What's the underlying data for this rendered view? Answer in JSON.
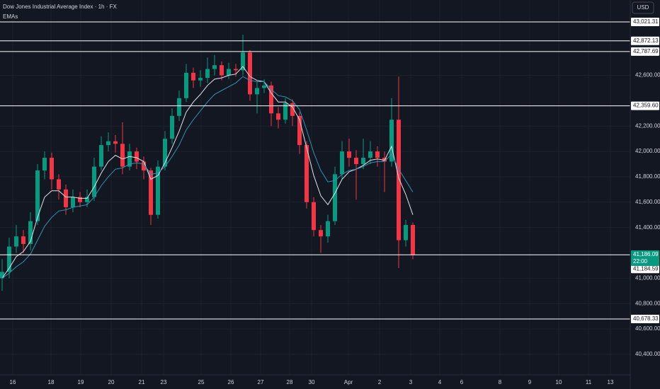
{
  "chart_data": {
    "type": "candlestick",
    "title": "Dow Jones Industrial Average Index · 1h · FX",
    "indicator": "EMAs",
    "currency": "USD",
    "up_color": "#089981",
    "down_color": "#f23645",
    "grid": true,
    "x": [
      0,
      1,
      2,
      3,
      4,
      5,
      6,
      7,
      8,
      9,
      10,
      11,
      12,
      13,
      14,
      15,
      16,
      17,
      18,
      19,
      20,
      21,
      22,
      23,
      24,
      25,
      26,
      27,
      28,
      29,
      30,
      31,
      32,
      33,
      34,
      35,
      36,
      37,
      38,
      39,
      40,
      41,
      42,
      43,
      44,
      45,
      46,
      47,
      48,
      49,
      50,
      51,
      52,
      53,
      54,
      55,
      56,
      57,
      58
    ],
    "open": [
      41000,
      41050,
      41250,
      41330,
      41270,
      41450,
      41850,
      41950,
      41780,
      41700,
      41560,
      41640,
      41600,
      41640,
      41880,
      42050,
      42080,
      42060,
      41880,
      42000,
      41920,
      41850,
      41500,
      41880,
      42100,
      42280,
      42420,
      42620,
      42560,
      42580,
      42650,
      42680,
      42600,
      42650,
      42640,
      42780,
      42450,
      42500,
      42520,
      42300,
      42250,
      42380,
      42280,
      42050,
      41600,
      41380,
      41330,
      41450,
      41820,
      42000,
      41950,
      41900,
      41950,
      42000,
      41950,
      41920,
      42250,
      41300,
      41420
    ],
    "high": [
      41150,
      41320,
      41420,
      41380,
      41520,
      41900,
      42000,
      41990,
      41820,
      41740,
      41700,
      41680,
      41700,
      41950,
      42120,
      42150,
      42130,
      42230,
      42060,
      42030,
      41960,
      41870,
      41930,
      42160,
      42340,
      42480,
      42690,
      42660,
      42640,
      42740,
      42760,
      42710,
      42700,
      42690,
      42920,
      42800,
      42550,
      42570,
      42550,
      42350,
      42420,
      42410,
      42310,
      42080,
      41640,
      41420,
      41500,
      41880,
      42080,
      42100,
      42010,
      42100,
      42080,
      42040,
      42000,
      42420,
      42590,
      41460,
      41440
    ],
    "low": [
      40900,
      41000,
      41200,
      41200,
      41220,
      41420,
      41780,
      41700,
      41620,
      41500,
      41520,
      41560,
      41560,
      41610,
      41850,
      42000,
      41990,
      41820,
      41850,
      41860,
      41780,
      41420,
      41470,
      41850,
      42060,
      42240,
      42390,
      42500,
      42510,
      42540,
      42600,
      42560,
      42570,
      42590,
      42600,
      42400,
      42300,
      42460,
      42200,
      42180,
      42220,
      42200,
      41980,
      41550,
      41330,
      41200,
      41280,
      41420,
      41780,
      41880,
      41620,
      41860,
      41900,
      41880,
      41680,
      41880,
      41080,
      41250,
      41150
    ],
    "close": [
      41050,
      41250,
      41330,
      41270,
      41450,
      41850,
      41950,
      41780,
      41700,
      41560,
      41640,
      41600,
      41640,
      41880,
      42050,
      42080,
      42060,
      41880,
      42000,
      41920,
      41850,
      41500,
      41880,
      42100,
      42280,
      42420,
      42620,
      42560,
      42580,
      42650,
      42680,
      42600,
      42650,
      42640,
      42780,
      42450,
      42500,
      42520,
      42300,
      42250,
      42380,
      42280,
      42050,
      41600,
      41380,
      41330,
      41450,
      41820,
      42000,
      41950,
      41900,
      41950,
      42000,
      41950,
      41920,
      42250,
      41300,
      41420,
      41186
    ],
    "ema_lines": [
      {
        "color": "#e0e3eb",
        "values": [
          41000,
          41080,
          41170,
          41210,
          41290,
          41480,
          41640,
          41690,
          41690,
          41640,
          41640,
          41630,
          41630,
          41720,
          41830,
          41920,
          41970,
          41940,
          41960,
          41950,
          41920,
          41780,
          41810,
          41910,
          42030,
          42160,
          42310,
          42390,
          42450,
          42520,
          42570,
          42580,
          42600,
          42610,
          42670,
          42590,
          42560,
          42550,
          42460,
          42390,
          42390,
          42350,
          42250,
          42030,
          41810,
          41650,
          41580,
          41670,
          41780,
          41840,
          41860,
          41890,
          41930,
          41940,
          41930,
          42040,
          41790,
          41660,
          41500
        ]
      },
      {
        "color": "#2f93b3",
        "values": [
          41000,
          41040,
          41090,
          41130,
          41190,
          41300,
          41410,
          41480,
          41530,
          41540,
          41560,
          41570,
          41580,
          41640,
          41730,
          41800,
          41860,
          41870,
          41900,
          41910,
          41900,
          41820,
          41830,
          41880,
          41960,
          42050,
          42170,
          42250,
          42320,
          42390,
          42450,
          42480,
          42510,
          42540,
          42590,
          42560,
          42550,
          42550,
          42490,
          42440,
          42430,
          42400,
          42330,
          42170,
          41990,
          41850,
          41760,
          41770,
          41820,
          41850,
          41860,
          41880,
          41910,
          41920,
          41920,
          41980,
          41860,
          41770,
          41680
        ]
      }
    ],
    "levels": [
      {
        "value": 43021.31,
        "label": "43,021.31"
      },
      {
        "value": 42872.13,
        "label": "42,872.13"
      },
      {
        "value": 42787.69,
        "label": "42,787.69"
      },
      {
        "value": 42359.6,
        "label": "42,359.60"
      },
      {
        "value": 41184.59,
        "label": "41,184.59"
      },
      {
        "value": 40678.33,
        "label": "40,678.33"
      }
    ],
    "last_price": {
      "value": 41186.09,
      "label": "41,186.09",
      "countdown": "22:00"
    },
    "xlim": [
      -0.3,
      88.7
    ],
    "ylim": [
      40238,
      43194
    ],
    "yticks": [
      {
        "value": 42600,
        "label": "42,600.00"
      },
      {
        "value": 42200,
        "label": "42,200.00"
      },
      {
        "value": 42000,
        "label": "42,000.00"
      },
      {
        "value": 41800,
        "label": "41,800.00"
      },
      {
        "value": 41600,
        "label": "41,600.00"
      },
      {
        "value": 41400,
        "label": "41,400.00"
      },
      {
        "value": 41000,
        "label": "41,000.00"
      },
      {
        "value": 40800,
        "label": "40,800.00"
      },
      {
        "value": 40600,
        "label": "40,600.00"
      },
      {
        "value": 40400,
        "label": "40,400.00"
      }
    ],
    "xticks": [
      {
        "value": 1.5,
        "label": "16"
      },
      {
        "value": 6.9,
        "label": "18"
      },
      {
        "value": 11.1,
        "label": "19"
      },
      {
        "value": 15.4,
        "label": "20"
      },
      {
        "value": 19.7,
        "label": "21"
      },
      {
        "value": 22.8,
        "label": "23"
      },
      {
        "value": 28.1,
        "label": "25"
      },
      {
        "value": 32.3,
        "label": "26"
      },
      {
        "value": 36.5,
        "label": "27"
      },
      {
        "value": 40.6,
        "label": "28"
      },
      {
        "value": 43.7,
        "label": "30"
      },
      {
        "value": 48.9,
        "label": "Apr"
      },
      {
        "value": 53.3,
        "label": "2"
      },
      {
        "value": 57.7,
        "label": "3"
      },
      {
        "value": 61.8,
        "label": "4"
      },
      {
        "value": 64.9,
        "label": "6"
      },
      {
        "value": 70.3,
        "label": "8"
      },
      {
        "value": 74.5,
        "label": "9"
      },
      {
        "value": 78.6,
        "label": "10"
      },
      {
        "value": 82.8,
        "label": "11"
      },
      {
        "value": 85.9,
        "label": "13"
      }
    ]
  }
}
